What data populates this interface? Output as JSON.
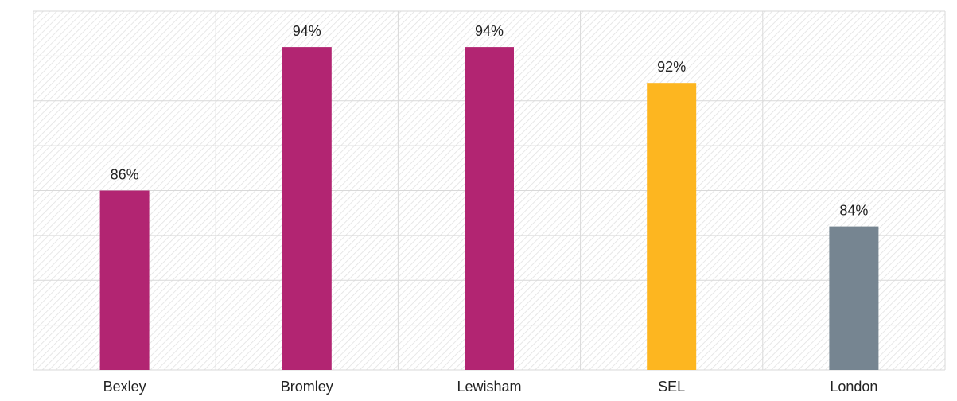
{
  "chart_data": {
    "type": "bar",
    "categories": [
      "Bexley",
      "Bromley",
      "Lewisham",
      "SEL",
      "London"
    ],
    "values": [
      86,
      94,
      94,
      92,
      84
    ],
    "value_labels": [
      "86%",
      "94%",
      "94%",
      "92%",
      "84%"
    ],
    "bar_colors": [
      "#b22572",
      "#b22572",
      "#b22572",
      "#fdb620",
      "#768591"
    ],
    "ylim": [
      76,
      96
    ],
    "y_gridline_step": 2.5,
    "grid": true,
    "legend": "none",
    "title": "",
    "xlabel": "",
    "ylabel": ""
  }
}
